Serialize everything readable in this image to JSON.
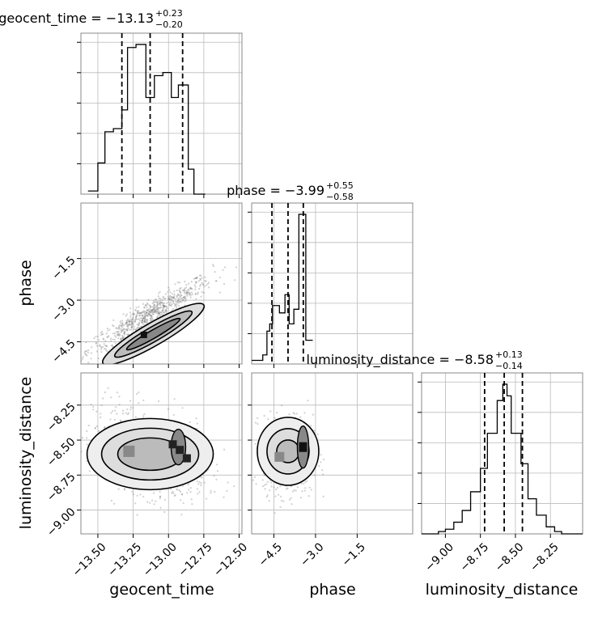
{
  "chart_data": {
    "type": "corner",
    "parameters": [
      "geocent_time",
      "phase",
      "luminosity_distance"
    ],
    "titles": [
      {
        "param": "geocent_time",
        "text": "geocent_time = −13.13",
        "plus": "+0.23",
        "minus": "−0.20"
      },
      {
        "param": "phase",
        "text": "phase = −3.99",
        "plus": "+0.55",
        "minus": "−0.58"
      },
      {
        "param": "luminosity_distance",
        "text": "luminosity_distance = −8.58",
        "plus": "+0.13",
        "minus": "−0.14"
      }
    ],
    "axis_labels": {
      "x": [
        "geocent_time",
        "phase",
        "luminosity_distance"
      ],
      "y": [
        "phase",
        "luminosity_distance"
      ]
    },
    "ranges": {
      "geocent_time": [
        -13.62,
        -12.48
      ],
      "phase": [
        -5.3,
        0.5
      ],
      "luminosity_distance": [
        -9.17,
        -8.02
      ]
    },
    "ticks": {
      "geocent_time": [
        {
          "value": -13.5,
          "label": "−13.50"
        },
        {
          "value": -13.25,
          "label": "−13.25"
        },
        {
          "value": -13.0,
          "label": "−13.00"
        },
        {
          "value": -12.75,
          "label": "−12.75"
        },
        {
          "value": -12.5,
          "label": "−12.50"
        }
      ],
      "phase": [
        {
          "value": -4.5,
          "label": "−4.5"
        },
        {
          "value": -3.0,
          "label": "−3.0"
        },
        {
          "value": -1.5,
          "label": "−1.5"
        }
      ],
      "luminosity_distance": [
        {
          "value": -9.0,
          "label": "−9.00"
        },
        {
          "value": -8.75,
          "label": "−8.75"
        },
        {
          "value": -8.5,
          "label": "−8.50"
        },
        {
          "value": -8.25,
          "label": "−8.25"
        }
      ]
    },
    "quantiles": {
      "geocent_time": [
        -13.33,
        -13.13,
        -12.9
      ],
      "phase": [
        -4.57,
        -3.99,
        -3.44
      ],
      "luminosity_distance": [
        -8.72,
        -8.58,
        -8.45
      ]
    },
    "histograms": {
      "geocent_time": {
        "edges": [
          -13.57,
          -13.5,
          -13.45,
          -13.39,
          -13.33,
          -13.29,
          -13.23,
          -13.16,
          -13.1,
          -13.04,
          -12.98,
          -12.93,
          -12.86,
          -12.82,
          -12.74
        ],
        "counts": [
          1,
          10,
          20,
          21,
          27,
          47,
          48,
          31,
          38,
          39,
          31,
          35,
          8,
          0
        ]
      },
      "phase": {
        "edges": [
          -5.3,
          -4.9,
          -4.75,
          -4.65,
          -4.55,
          -4.3,
          -4.1,
          -3.95,
          -3.78,
          -3.6,
          -3.35,
          -3.1
        ],
        "counts": [
          2,
          5,
          18,
          22,
          32,
          28,
          38,
          22,
          30,
          82,
          13
        ]
      },
      "luminosity_distance": {
        "edges": [
          -9.17,
          -9.05,
          -9.0,
          -8.94,
          -8.88,
          -8.82,
          -8.75,
          -8.7,
          -8.63,
          -8.59,
          -8.56,
          -8.53,
          -8.46,
          -8.41,
          -8.35,
          -8.28,
          -8.22,
          -8.17,
          -8.02
        ],
        "counts": [
          0,
          1,
          2,
          5,
          10,
          18,
          28,
          43,
          57,
          64,
          59,
          43,
          30,
          15,
          8,
          3,
          1,
          0
        ]
      }
    },
    "grid": true
  }
}
